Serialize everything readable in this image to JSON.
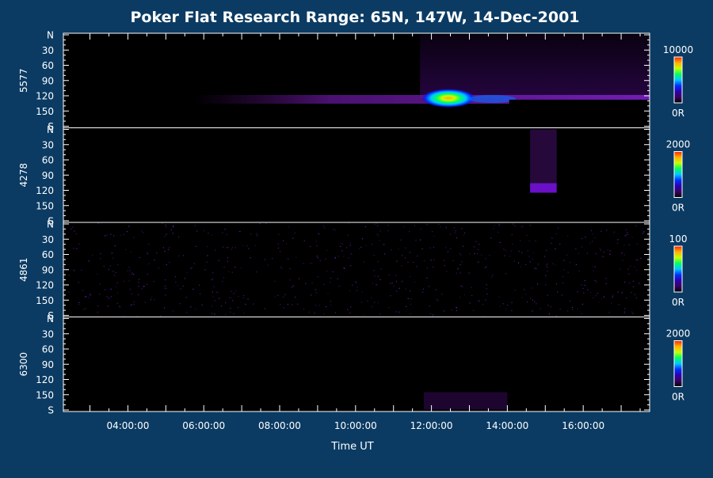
{
  "chart_data": {
    "type": "heatmap",
    "title": "Poker Flat Research Range: 65N, 147W, 14-Dec-2001",
    "xlabel": "Time UT",
    "x_tick_labels": [
      "04:00:00",
      "06:00:00",
      "08:00:00",
      "10:00:00",
      "12:00:00",
      "14:00:00",
      "16:00:00"
    ],
    "x_ticks_hours": [
      4,
      6,
      8,
      10,
      12,
      14,
      16
    ],
    "xlim_hours": [
      2.3,
      17.75
    ],
    "y_tick_labels": [
      "N",
      "30",
      "60",
      "90",
      "120",
      "150",
      "S"
    ],
    "y_ticks_degrees": [
      0,
      30,
      60,
      90,
      120,
      150,
      180
    ],
    "ylim_degrees": [
      0,
      180
    ],
    "panels": [
      {
        "name": "5577",
        "scale_max": "10000",
        "scale_min": "0R"
      },
      {
        "name": "4278",
        "scale_max": "2000",
        "scale_min": "0R"
      },
      {
        "name": "4861",
        "scale_max": "100",
        "scale_min": "0R"
      },
      {
        "name": "6300",
        "scale_max": "2000",
        "scale_min": "0R"
      }
    ],
    "colors": {
      "background": "#0b3b63",
      "plot_background": "#000000",
      "colorbar": [
        "#000000",
        "#3a0060",
        "#2a00b0",
        "#0030ff",
        "#00c8ff",
        "#00ff60",
        "#c8ff00",
        "#ffb000",
        "#ff2000"
      ]
    }
  }
}
